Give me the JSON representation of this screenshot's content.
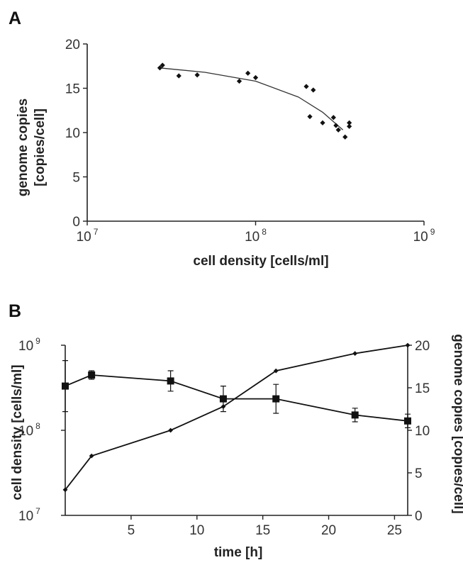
{
  "panels": [
    {
      "label": "A",
      "chart_data": {
        "type": "scatter",
        "xscale": "log",
        "xlim": [
          10000000,
          1000000000
        ],
        "ylim": [
          0,
          20
        ],
        "xlabel": "cell density [cells/ml]",
        "ylabel_line1": "genome copies",
        "ylabel_line2": "[copies/cell]",
        "x_ticks": [
          {
            "base": "10",
            "exp": "7"
          },
          {
            "base": "10",
            "exp": "8"
          },
          {
            "base": "10",
            "exp": "9"
          }
        ],
        "y_ticks": [
          "0",
          "5",
          "10",
          "15",
          "20"
        ],
        "points": [
          {
            "x": 28000000,
            "y": 17.6
          },
          {
            "x": 27000000,
            "y": 17.3
          },
          {
            "x": 35000000,
            "y": 16.4
          },
          {
            "x": 45000000,
            "y": 16.5
          },
          {
            "x": 80000000,
            "y": 15.8
          },
          {
            "x": 90000000,
            "y": 16.7
          },
          {
            "x": 100000000,
            "y": 16.2
          },
          {
            "x": 200000000,
            "y": 15.2
          },
          {
            "x": 220000000,
            "y": 14.8
          },
          {
            "x": 210000000,
            "y": 11.8
          },
          {
            "x": 250000000,
            "y": 11.1
          },
          {
            "x": 290000000,
            "y": 11.7
          },
          {
            "x": 310000000,
            "y": 10.3
          },
          {
            "x": 300000000,
            "y": 10.8
          },
          {
            "x": 340000000,
            "y": 9.5
          },
          {
            "x": 360000000,
            "y": 11.1
          },
          {
            "x": 360000000,
            "y": 10.7
          }
        ],
        "fit": {
          "x": [
            27000000,
            50000000,
            100000000,
            180000000,
            250000000,
            330000000
          ],
          "y": [
            17.3,
            16.8,
            15.8,
            14.0,
            12.3,
            10.3
          ]
        }
      }
    },
    {
      "label": "B",
      "chart_data": {
        "type": "line",
        "xlim": [
          0,
          26
        ],
        "xlabel": "time [h]",
        "x_ticks": [
          "5",
          "10",
          "15",
          "20",
          "25"
        ],
        "x_tick_values": [
          5,
          10,
          15,
          20,
          25
        ],
        "left_axis": {
          "label": "cell density [cells/ml]",
          "scale": "log",
          "lim": [
            10000000,
            1000000000
          ],
          "ticks": [
            {
              "base": "10",
              "exp": "7"
            },
            {
              "base": "10",
              "exp": "8"
            },
            {
              "base": "10",
              "exp": "9"
            }
          ]
        },
        "right_axis": {
          "label": "genome copies [copies/cell]",
          "lim": [
            0,
            20
          ],
          "ticks": [
            "0",
            "5",
            "10",
            "15",
            "20"
          ]
        },
        "series": [
          {
            "marker": "diamond",
            "axis": "left",
            "x": [
              0,
              2,
              8,
              12,
              16,
              22,
              26
            ],
            "y": [
              20000000,
              50000000,
              100000000,
              190000000,
              500000000,
              800000000,
              1000000000
            ]
          },
          {
            "marker": "square",
            "axis": "right",
            "x": [
              0,
              2,
              8,
              12,
              16,
              22,
              26
            ],
            "y": [
              15.2,
              16.5,
              15.8,
              13.7,
              13.7,
              11.8,
              11.1
            ],
            "err": [
              3.0,
              0.5,
              1.2,
              1.5,
              1.7,
              0.8,
              0.8
            ]
          }
        ]
      }
    }
  ]
}
